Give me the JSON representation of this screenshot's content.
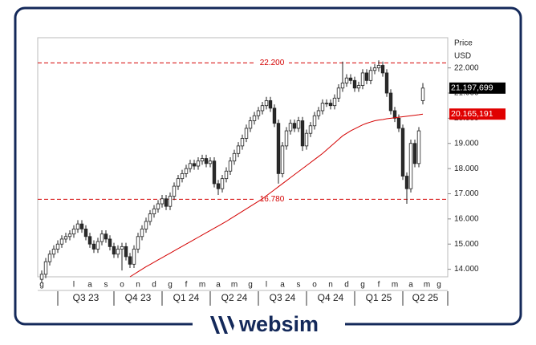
{
  "chart_data": {
    "type": "candlestick",
    "y_title": "Price",
    "y_unit": "USD",
    "categories": [
      "g",
      null,
      null,
      null,
      null,
      null,
      null,
      null,
      "l",
      null,
      null,
      null,
      "a",
      null,
      null,
      null,
      "s",
      null,
      null,
      null,
      "o",
      null,
      null,
      null,
      "n",
      null,
      null,
      null,
      "d",
      null,
      null,
      null,
      "g",
      null,
      null,
      null,
      "f",
      null,
      null,
      null,
      "m",
      null,
      null,
      null,
      "a",
      null,
      null,
      null,
      "m",
      null,
      null,
      null,
      "g",
      null,
      null,
      null,
      "l",
      null,
      null,
      null,
      "a",
      null,
      null,
      null,
      "s",
      null,
      null,
      null,
      "o",
      null,
      null,
      null,
      "n",
      null,
      null,
      null,
      "d",
      null,
      null,
      null,
      "g",
      null,
      null,
      null,
      "f",
      null,
      null,
      null,
      "m",
      null,
      null,
      null,
      "a",
      null,
      null,
      null,
      "m",
      null,
      null,
      "g"
    ],
    "quarter_labels": [
      "Q3 23",
      "Q4 23",
      "Q1 24",
      "Q2 24",
      "Q3 24",
      "Q4 24",
      "Q1 25",
      "Q2 25"
    ],
    "open": [
      13600,
      13800,
      14300,
      14600,
      14800,
      15000,
      15200,
      15300,
      15400,
      15600,
      15800,
      15600,
      15300,
      15000,
      14800,
      15100,
      15400,
      15200,
      14900,
      14600,
      14800,
      14900,
      14500,
      14200,
      14800,
      15300,
      15600,
      15900,
      16200,
      16400,
      16600,
      16800,
      16500,
      16900,
      17300,
      17600,
      17800,
      18000,
      18200,
      18100,
      18300,
      18400,
      18200,
      18300,
      17400,
      17200,
      17600,
      17900,
      18300,
      18600,
      18900,
      19200,
      19600,
      19900,
      20100,
      20300,
      20500,
      20700,
      20400,
      19800,
      17800,
      18900,
      19500,
      19800,
      19600,
      19900,
      18900,
      19400,
      19700,
      20100,
      20300,
      20600,
      20600,
      20500,
      20800,
      21200,
      21400,
      21600,
      21500,
      21200,
      21300,
      21800,
      21500,
      21900,
      22000,
      22100,
      21800,
      21000,
      20300,
      20000,
      19600,
      17700,
      17200,
      19000,
      18200,
      20700,
      null,
      null,
      null,
      null
    ],
    "high": [
      13950,
      14450,
      14750,
      14950,
      15150,
      15350,
      15450,
      15550,
      15750,
      15950,
      15950,
      15750,
      15450,
      15150,
      15250,
      15550,
      15550,
      15350,
      15050,
      14950,
      15050,
      15050,
      14650,
      14950,
      15450,
      15750,
      16050,
      16350,
      16550,
      16750,
      16950,
      16950,
      17050,
      17450,
      17750,
      17950,
      18150,
      18350,
      18350,
      18450,
      18550,
      18550,
      18450,
      18450,
      17550,
      17750,
      18050,
      18450,
      18750,
      19050,
      19350,
      19750,
      20050,
      20250,
      20450,
      20650,
      20850,
      20850,
      20550,
      19950,
      19050,
      19650,
      19950,
      19950,
      20050,
      20050,
      19550,
      19850,
      20250,
      20450,
      20750,
      20750,
      20750,
      20950,
      21350,
      22250,
      21750,
      21750,
      21650,
      21450,
      21950,
      21950,
      22050,
      22150,
      22300,
      22250,
      21950,
      21150,
      20450,
      20150,
      19750,
      17850,
      19150,
      19150,
      19650,
      21400,
      null,
      null,
      null,
      null
    ],
    "low": [
      13450,
      13650,
      14150,
      14450,
      14650,
      14850,
      15050,
      15150,
      15250,
      15450,
      15450,
      15150,
      14850,
      14650,
      14650,
      14950,
      15050,
      14750,
      14450,
      14450,
      13950,
      14350,
      14050,
      14050,
      14650,
      15150,
      15450,
      15750,
      16050,
      16250,
      16450,
      16350,
      16350,
      16750,
      17150,
      17450,
      17650,
      17850,
      17950,
      17950,
      18150,
      18050,
      18050,
      17250,
      16950,
      17050,
      17450,
      17750,
      18150,
      18450,
      18750,
      19050,
      19450,
      19750,
      19950,
      20150,
      20350,
      20250,
      19650,
      17400,
      17650,
      18750,
      19350,
      19450,
      19450,
      18700,
      18750,
      19250,
      19550,
      19950,
      20150,
      20450,
      20350,
      20350,
      20650,
      21050,
      21250,
      21350,
      21050,
      21050,
      21150,
      21350,
      21350,
      21750,
      21850,
      21650,
      20850,
      20150,
      19850,
      19450,
      17550,
      16600,
      17050,
      18050,
      18050,
      20550,
      null,
      null,
      null,
      null
    ],
    "close": [
      13800,
      14300,
      14600,
      14800,
      15000,
      15200,
      15300,
      15400,
      15600,
      15800,
      15600,
      15300,
      15000,
      14800,
      15100,
      15400,
      15200,
      14900,
      14600,
      14800,
      14900,
      14500,
      14200,
      14800,
      15300,
      15600,
      15900,
      16200,
      16400,
      16600,
      16800,
      16500,
      16900,
      17300,
      17600,
      17800,
      18000,
      18200,
      18100,
      18300,
      18400,
      18200,
      18300,
      17400,
      17200,
      17600,
      17900,
      18300,
      18600,
      18900,
      19200,
      19600,
      19900,
      20100,
      20300,
      20500,
      20700,
      20400,
      19800,
      17800,
      18900,
      19500,
      19800,
      19600,
      19900,
      18900,
      19400,
      19700,
      20100,
      20300,
      20600,
      20600,
      20500,
      20800,
      21200,
      21400,
      21600,
      21500,
      21200,
      21300,
      21800,
      21500,
      21900,
      22000,
      22100,
      21800,
      21000,
      20300,
      20000,
      19600,
      17700,
      17200,
      19000,
      18200,
      19500,
      21198,
      null,
      null,
      null,
      null
    ],
    "up_color": "#ffffff",
    "down_color": "#2a2a2a",
    "wick_color": "#222222",
    "ma": {
      "color": "#d40000",
      "values": [
        null,
        null,
        null,
        null,
        null,
        null,
        null,
        null,
        null,
        null,
        null,
        null,
        null,
        null,
        null,
        null,
        null,
        null,
        null,
        null,
        null,
        null,
        13700,
        13800,
        13900,
        14000,
        14100,
        14190,
        14280,
        14370,
        14460,
        14550,
        14640,
        14730,
        14820,
        14910,
        15000,
        15090,
        15180,
        15270,
        15360,
        15450,
        15540,
        15630,
        15720,
        15810,
        15900,
        16000,
        16100,
        16200,
        16300,
        16400,
        16500,
        16600,
        16700,
        16800,
        16920,
        17040,
        17160,
        17280,
        17400,
        17520,
        17640,
        17760,
        17880,
        18000,
        18120,
        18240,
        18360,
        18480,
        18600,
        18740,
        18880,
        19020,
        19160,
        19300,
        19400,
        19500,
        19580,
        19660,
        19740,
        19800,
        19850,
        19900,
        19930,
        19950,
        19980,
        20000,
        20020,
        20040,
        20060,
        20080,
        20100,
        20120,
        20140,
        20165.191,
        null,
        null,
        null,
        null
      ]
    },
    "ref_lines": [
      {
        "value": 22200,
        "label": "22.200",
        "color": "#d40000"
      },
      {
        "value": 16780,
        "label": "16.780",
        "color": "#d40000"
      }
    ],
    "price_tags": [
      {
        "value": 21197.699,
        "label": "21.197,699",
        "color": "#000000"
      },
      {
        "value": 20165.191,
        "label": "20.165,191",
        "color": "#e00000"
      }
    ],
    "ylim": [
      13700,
      23200
    ],
    "yticks": [
      {
        "value": 14000,
        "label": "14.000"
      },
      {
        "value": 15000,
        "label": "15.000"
      },
      {
        "value": 16000,
        "label": "16.000"
      },
      {
        "value": 17000,
        "label": "17.000"
      },
      {
        "value": 18000,
        "label": "18.000"
      },
      {
        "value": 19000,
        "label": "19.000"
      },
      {
        "value": 20000,
        "label": "20.000"
      },
      {
        "value": 21000,
        "label": "21.000"
      },
      {
        "value": 22000,
        "label": "22.000"
      }
    ]
  },
  "brand": "websim"
}
